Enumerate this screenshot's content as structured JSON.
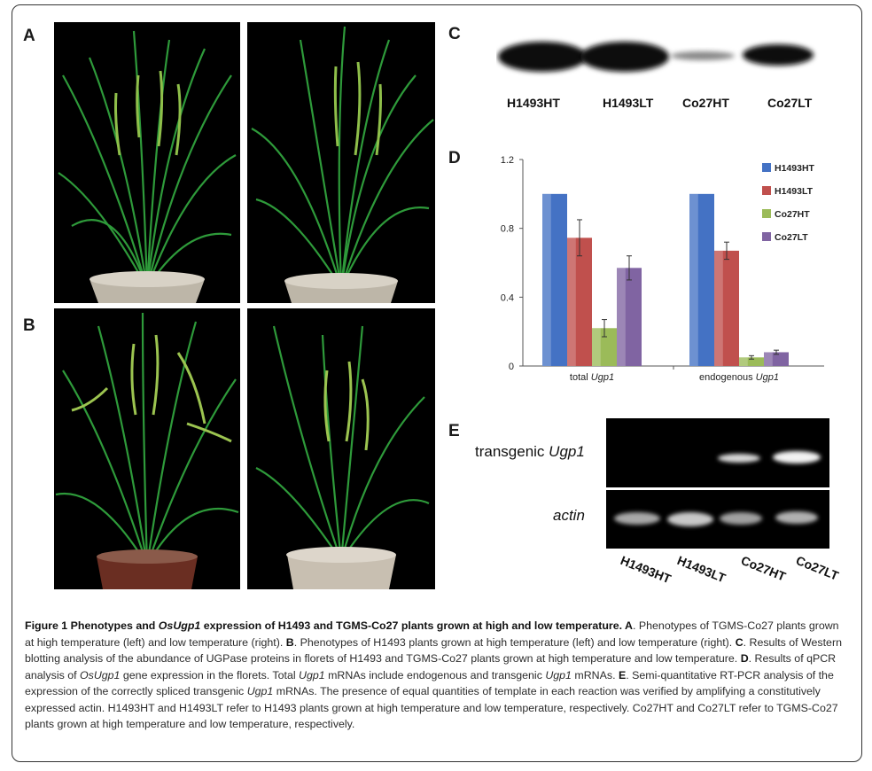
{
  "panels": {
    "A": "A",
    "B": "B",
    "C": "C",
    "D": "D",
    "E": "E"
  },
  "western_blot": {
    "lanes": [
      "H1493HT",
      "H1493LT",
      "Co27HT",
      "Co27LT"
    ]
  },
  "gel": {
    "row1_prefix": "transgenic ",
    "row1_gene": "Ugp1",
    "row2": "actin",
    "lanes": [
      "H1493HT",
      "H1493LT",
      "Co27HT",
      "Co27LT"
    ]
  },
  "chart_data": {
    "type": "bar",
    "categories_parts": [
      {
        "prefix": "total ",
        "gene": "Ugp1"
      },
      {
        "prefix": "endogenous ",
        "gene": "Ugp1"
      }
    ],
    "series": [
      {
        "name": "H1493HT",
        "color": "#4472c4",
        "values": [
          1.0,
          1.0
        ],
        "errors": [
          0,
          0
        ]
      },
      {
        "name": "H1493LT",
        "color": "#c0504d",
        "values": [
          0.745,
          0.67
        ],
        "errors": [
          0.105,
          0.05
        ]
      },
      {
        "name": "Co27HT",
        "color": "#9bbb59",
        "values": [
          0.22,
          0.05
        ],
        "errors": [
          0.05,
          0.01
        ]
      },
      {
        "name": "Co27LT",
        "color": "#8064a2",
        "values": [
          0.57,
          0.08
        ],
        "errors": [
          0.07,
          0.012
        ]
      }
    ],
    "yticks": [
      "0",
      "0.4",
      "0.8",
      "1.2"
    ],
    "ylim": [
      0,
      1.2
    ],
    "legend_position": "right"
  },
  "caption": {
    "fig_label": "Figure 1",
    "title_pre": " Phenotypes and ",
    "title_gene": "OsUgp1",
    "title_post": " expression of H1493 and TGMS-Co27 plants grown at high and low temperature. ",
    "a_label": "A",
    "a_text": ". Phenotypes of TGMS-Co27 plants grown at high temperature (left) and low temperature (right). ",
    "b_label": "B",
    "b_text": ". Phenotypes of H1493 plants grown at high temperature (left) and low temperature (right). ",
    "c_label": "C",
    "c_text": ". Results of Western blotting analysis of the abundance of UGPase proteins in florets of H1493 and TGMS-Co27 plants grown at high temperature and low temperature. ",
    "d_label": "D",
    "d_text1": ". Results of qPCR analysis of ",
    "d_gene1": "OsUgp1",
    "d_text2": " gene expression in the florets. Total ",
    "d_gene2": "Ugp1",
    "d_text3": " mRNAs include endogenous and transgenic ",
    "d_gene3": "Ugp1",
    "d_text4": " mRNAs. ",
    "e_label": "E",
    "e_text1": ". Semi-quantitative RT-PCR analysis of the expression of the correctly spliced transgenic ",
    "e_gene": "Ugp1",
    "e_text2": " mRNAs. The presence of equal quantities of template in each reaction was verified by amplifying a constitutively expressed actin. H1493HT and H1493LT refer to H1493 plants grown at high temperature and low temperature, respectively. Co27HT and Co27LT refer to TGMS-Co27 plants grown at high temperature and low temperature, respectively."
  }
}
